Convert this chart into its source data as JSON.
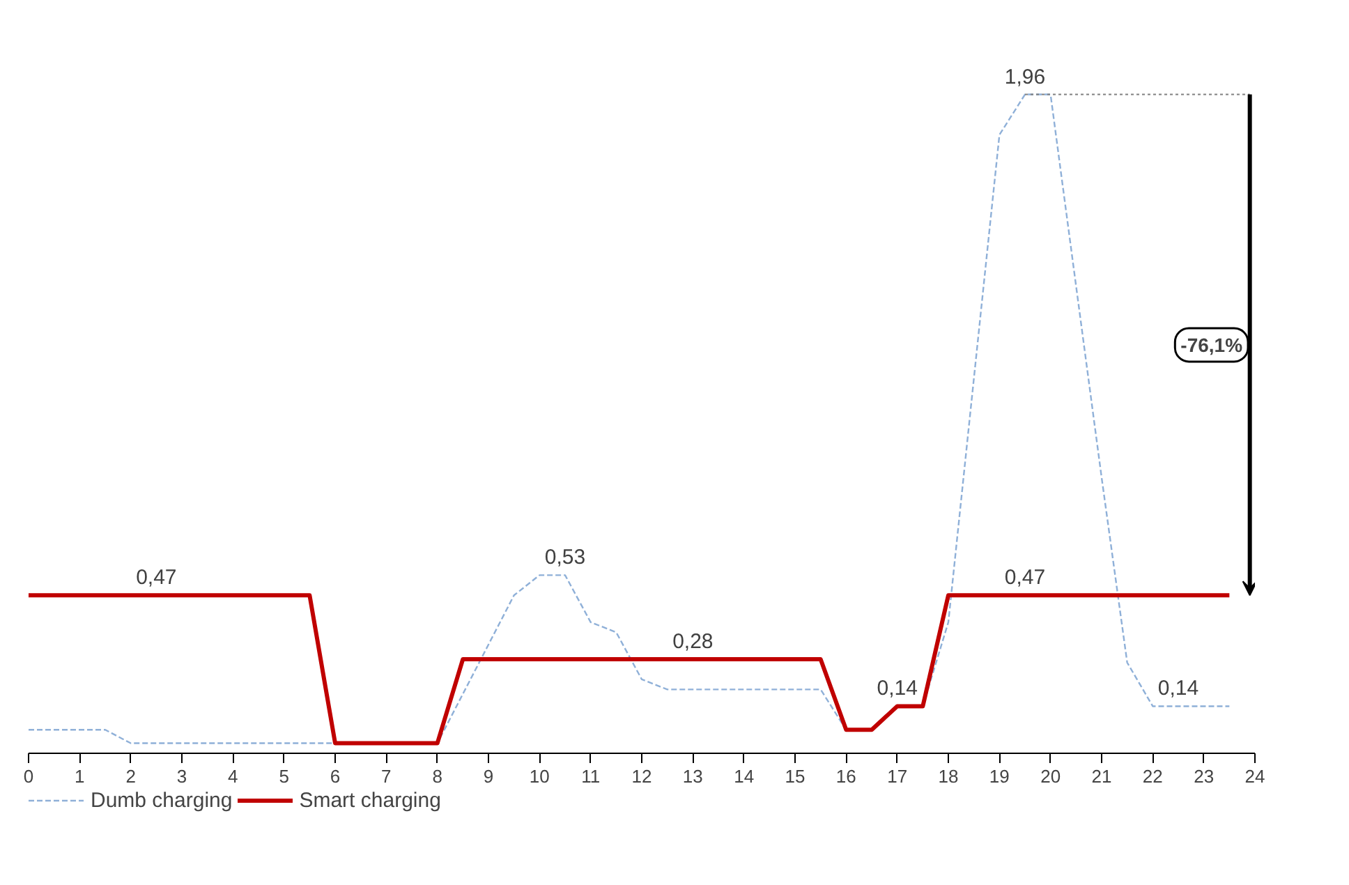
{
  "chart_data": {
    "type": "line",
    "xlim": [
      0,
      24
    ],
    "xticks": [
      0,
      1,
      2,
      3,
      4,
      5,
      6,
      7,
      8,
      9,
      10,
      11,
      12,
      13,
      14,
      15,
      16,
      17,
      18,
      19,
      20,
      21,
      22,
      23,
      24
    ],
    "tick_labels": "x",
    "grid": false,
    "legend": "bottom",
    "marker": "none",
    "series": [
      {
        "name": "Dumb charging",
        "color": "#8fb0d8",
        "line_style": "dashed",
        "x": [
          0,
          1.5,
          2,
          5.5,
          6,
          8,
          9.5,
          10,
          10.5,
          11,
          11.5,
          12,
          12.5,
          15.5,
          16,
          16.5,
          17,
          17.5,
          18,
          19,
          19.5,
          20,
          21,
          21.5,
          22,
          22.5,
          23.5
        ],
        "values": [
          0.07,
          0.07,
          0.03,
          0.03,
          0.03,
          0.03,
          0.47,
          0.53,
          0.53,
          0.39,
          0.36,
          0.22,
          0.19,
          0.19,
          0.07,
          0.07,
          0.14,
          0.14,
          0.39,
          1.84,
          1.96,
          1.96,
          0.82,
          0.27,
          0.14,
          0.14,
          0.14
        ],
        "value_labels": [
          null,
          null,
          null,
          null,
          null,
          null,
          null,
          null,
          "0,53",
          null,
          null,
          null,
          null,
          null,
          null,
          null,
          null,
          null,
          null,
          null,
          "1,96",
          null,
          null,
          null,
          null,
          "0,14",
          null
        ]
      },
      {
        "name": "Smart charging",
        "color": "#c00000",
        "line_style": "solid",
        "x": [
          0,
          2.5,
          5.5,
          6,
          8,
          8.5,
          13,
          15.5,
          16,
          16.5,
          17,
          17.5,
          18,
          19.5,
          23.5
        ],
        "values": [
          0.47,
          0.47,
          0.47,
          0.03,
          0.03,
          0.28,
          0.28,
          0.28,
          0.07,
          0.07,
          0.14,
          0.14,
          0.47,
          0.47,
          0.47
        ],
        "value_labels": [
          null,
          "0,47",
          null,
          null,
          null,
          null,
          "0,28",
          null,
          null,
          null,
          "0,14",
          null,
          null,
          "0,47",
          null
        ]
      }
    ],
    "annotations": [
      "-76,1%"
    ]
  }
}
